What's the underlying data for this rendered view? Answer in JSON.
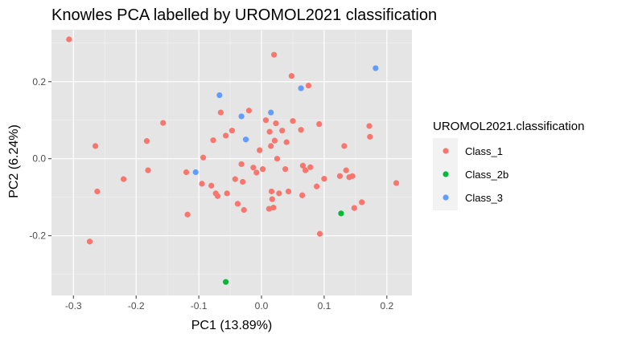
{
  "chart_data": {
    "type": "scatter",
    "title": "Knowles PCA labelled by UROMOL2021 classification",
    "xlabel": "PC1 (13.89%)",
    "ylabel": "PC2 (6.24%)",
    "xlim": [
      -0.335,
      0.24
    ],
    "ylim": [
      -0.355,
      0.335
    ],
    "xticks": [
      -0.3,
      -0.2,
      -0.1,
      0.0,
      0.1,
      0.2
    ],
    "xtick_labels": [
      "-0.3",
      "-0.2",
      "-0.1",
      "0.0",
      "0.1",
      "0.2"
    ],
    "yticks": [
      -0.2,
      0.0,
      0.2
    ],
    "ytick_labels": [
      "-0.2",
      "0.0",
      "0.2"
    ],
    "grid": true,
    "panel_background": "#E5E5E5",
    "legend": {
      "title": "UROMOL2021.classification",
      "placement": "right"
    },
    "series": [
      {
        "name": "Class_1",
        "color": "#F8766D",
        "points": [
          [
            -0.307,
            0.31
          ],
          [
            -0.265,
            0.033
          ],
          [
            -0.262,
            -0.085
          ],
          [
            -0.274,
            -0.215
          ],
          [
            -0.22,
            -0.053
          ],
          [
            -0.183,
            0.046
          ],
          [
            -0.181,
            -0.03
          ],
          [
            -0.157,
            0.093
          ],
          [
            -0.12,
            -0.035
          ],
          [
            -0.118,
            -0.145
          ],
          [
            -0.095,
            -0.065
          ],
          [
            -0.093,
            0.003
          ],
          [
            -0.08,
            -0.07
          ],
          [
            -0.077,
            0.048
          ],
          [
            -0.073,
            -0.09
          ],
          [
            -0.07,
            -0.097
          ],
          [
            -0.065,
            0.12
          ],
          [
            -0.057,
            0.06
          ],
          [
            -0.055,
            -0.09
          ],
          [
            -0.047,
            0.073
          ],
          [
            -0.042,
            -0.053
          ],
          [
            -0.038,
            -0.117
          ],
          [
            -0.032,
            -0.014
          ],
          [
            -0.03,
            -0.06
          ],
          [
            -0.028,
            -0.133
          ],
          [
            -0.02,
            0.125
          ],
          [
            -0.013,
            -0.023
          ],
          [
            -0.008,
            -0.036
          ],
          [
            -0.003,
            0.022
          ],
          [
            0.002,
            -0.027
          ],
          [
            0.007,
            0.1
          ],
          [
            0.012,
            -0.13
          ],
          [
            0.013,
            0.07
          ],
          [
            0.015,
            0.033
          ],
          [
            0.016,
            -0.085
          ],
          [
            0.017,
            -0.105
          ],
          [
            0.019,
            -0.127
          ],
          [
            0.02,
            0.27
          ],
          [
            0.021,
            0.047
          ],
          [
            0.023,
            0.092
          ],
          [
            0.025,
            0.0
          ],
          [
            0.028,
            -0.09
          ],
          [
            0.033,
            0.073
          ],
          [
            0.038,
            -0.027
          ],
          [
            0.04,
            0.043
          ],
          [
            0.043,
            -0.085
          ],
          [
            0.048,
            0.215
          ],
          [
            0.05,
            0.098
          ],
          [
            0.063,
            0.075
          ],
          [
            0.065,
            -0.095
          ],
          [
            0.066,
            -0.018
          ],
          [
            0.07,
            -0.03
          ],
          [
            0.078,
            -0.022
          ],
          [
            0.075,
            0.19
          ],
          [
            0.088,
            -0.072
          ],
          [
            0.092,
            0.09
          ],
          [
            0.093,
            -0.195
          ],
          [
            0.1,
            -0.052
          ],
          [
            0.125,
            -0.045
          ],
          [
            0.132,
            0.033
          ],
          [
            0.135,
            -0.03
          ],
          [
            0.14,
            -0.048
          ],
          [
            0.145,
            -0.045
          ],
          [
            0.148,
            -0.128
          ],
          [
            0.16,
            -0.113
          ],
          [
            0.172,
            0.085
          ],
          [
            0.173,
            0.057
          ],
          [
            0.215,
            -0.063
          ]
        ]
      },
      {
        "name": "Class_2b",
        "color": "#00BA38",
        "points": [
          [
            -0.057,
            -0.32
          ],
          [
            0.127,
            -0.142
          ]
        ]
      },
      {
        "name": "Class_3",
        "color": "#619CFF",
        "points": [
          [
            -0.105,
            -0.035
          ],
          [
            -0.067,
            0.165
          ],
          [
            -0.032,
            0.11
          ],
          [
            -0.025,
            0.05
          ],
          [
            0.015,
            0.12
          ],
          [
            0.063,
            0.183
          ],
          [
            0.182,
            0.235
          ]
        ]
      }
    ]
  }
}
